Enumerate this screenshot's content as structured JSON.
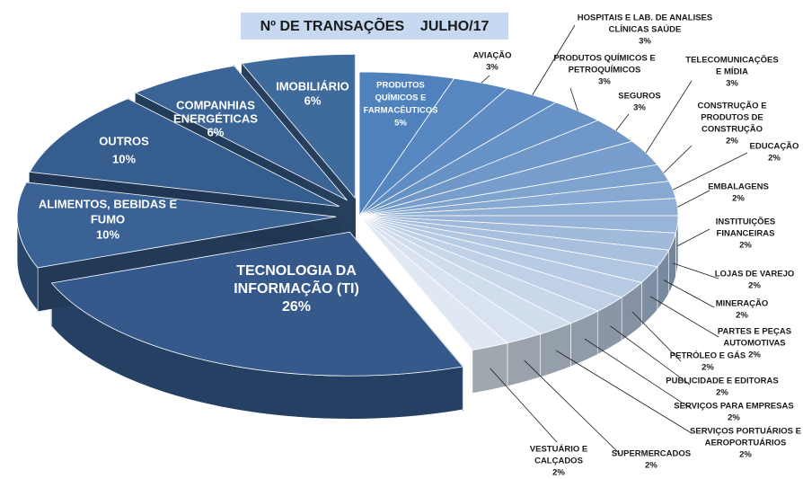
{
  "chart_data": {
    "type": "pie3d",
    "title": "Nº DE TRANSAÇÕES    JULHO/17",
    "categories": [
      [
        "PRODUTOS",
        "QUÍMICOS E",
        "FARMACÊUTICOS"
      ],
      [
        "AVIAÇÃO"
      ],
      [
        "HOSPITAIS E LAB. DE ANALISES",
        "CLÍNICAS SAÚDE"
      ],
      [
        "PRODUTOS QUÍMICOS E",
        "PETROQUÍMICOS"
      ],
      [
        "SEGUROS"
      ],
      [
        "TELECOMUNICAÇÕES",
        "E MÍDIA"
      ],
      [
        "CONSTRUÇÃO E",
        "PRODUTOS DE",
        "CONSTRUÇÃO"
      ],
      [
        "EDUCAÇÃO"
      ],
      [
        "EMBALAGENS"
      ],
      [
        "INSTITUIÇÕES",
        "FINANCEIRAS"
      ],
      [
        "LOJAS DE VAREJO"
      ],
      [
        "MINERAÇÃO"
      ],
      [
        "PARTES E PEÇAS",
        "AUTOMOTIVAS"
      ],
      [
        "PETRÓLEO E GÁS"
      ],
      [
        "PUBLICIDADE E EDITORAS"
      ],
      [
        "SERVIÇOS PARA EMPRESAS"
      ],
      [
        "SERVIÇOS PORTUÁRIOS E",
        "AEROPORTUÁRIOS"
      ],
      [
        "SUPERMERCADOS"
      ],
      [
        "VESTUÁRIO E",
        "CALÇADOS"
      ],
      [
        "TECNOLOGIA DA",
        "INFORMAÇÃO (TI)"
      ],
      [
        "ALIMENTOS, BEBIDAS E",
        "FUMO"
      ],
      [
        "OUTROS"
      ],
      [
        "COMPANHIAS",
        "ENERGÉTICAS"
      ],
      [
        "IMOBILIÁRIO"
      ]
    ],
    "values": [
      5,
      3,
      3,
      3,
      3,
      3,
      2,
      2,
      2,
      2,
      2,
      2,
      2,
      2,
      2,
      2,
      2,
      2,
      2,
      26,
      10,
      10,
      6,
      6
    ],
    "value_labels": [
      "5%",
      "3%",
      "3%",
      "3%",
      "3%",
      "3%",
      "2%",
      "2%",
      "2%",
      "2%",
      "2%",
      "2%",
      "2%",
      "2%",
      "2%",
      "2%",
      "2%",
      "2%",
      "2%",
      "26%",
      "10%",
      "10%",
      "6%",
      "6%"
    ],
    "colors": [
      "#4f81bd",
      "#5787c0",
      "#5f8cc3",
      "#6792c6",
      "#6f98c9",
      "#779ecc",
      "#7fa3cf",
      "#87a9d2",
      "#8fafd5",
      "#98b4d8",
      "#a0badb",
      "#a8c0de",
      "#b0c6e1",
      "#b8cbe4",
      "#c0d1e7",
      "#c8d7ea",
      "#d0dded",
      "#d8e2f0",
      "#e0e8f3",
      "#34598a",
      "#3a6294",
      "#355d8e",
      "#3b6496",
      "#3f6a9c"
    ]
  }
}
